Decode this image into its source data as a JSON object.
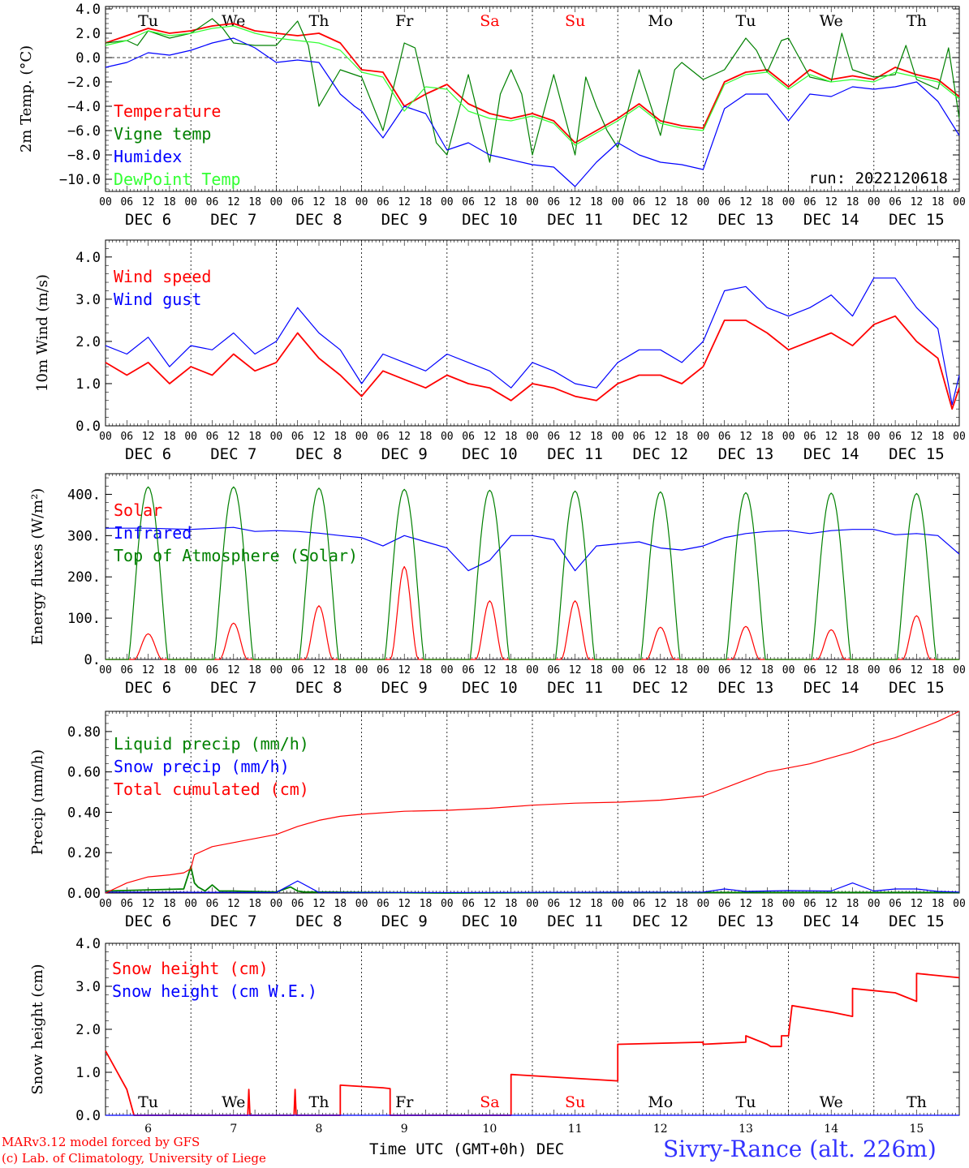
{
  "credits": {
    "line1": "MARv3.12 model forced by GFS",
    "line2": "(c) Lab. of Climatology, University of Liege"
  },
  "station": "Sivry-Rance (alt. 226m)",
  "xaxis_title": "Time UTC (GMT+0h) DEC",
  "colors": {
    "red": "#ff0000",
    "blue": "#0000ff",
    "green": "#008000",
    "lightgreen": "#33ff33",
    "weekend": "#ff0000"
  },
  "days": [
    {
      "dow": "Tu",
      "date": "DEC  6",
      "num": "6",
      "weekend": false
    },
    {
      "dow": "We",
      "date": "DEC  7",
      "num": "7",
      "weekend": false
    },
    {
      "dow": "Th",
      "date": "DEC  8",
      "num": "8",
      "weekend": false
    },
    {
      "dow": "Fr",
      "date": "DEC  9",
      "num": "9",
      "weekend": false
    },
    {
      "dow": "Sa",
      "date": "DEC 10",
      "num": "10",
      "weekend": true
    },
    {
      "dow": "Su",
      "date": "DEC 11",
      "num": "11",
      "weekend": true
    },
    {
      "dow": "Mo",
      "date": "DEC 12",
      "num": "12",
      "weekend": false
    },
    {
      "dow": "Tu",
      "date": "DEC 13",
      "num": "13",
      "weekend": false
    },
    {
      "dow": "We",
      "date": "DEC 14",
      "num": "14",
      "weekend": false
    },
    {
      "dow": "Th",
      "date": "DEC 15",
      "num": "15",
      "weekend": false
    }
  ],
  "hour_ticks": [
    "00",
    "06",
    "12",
    "18"
  ],
  "hour_end": "00",
  "chart_data": [
    {
      "type": "line",
      "ylabel": "2m Temp. (°C)",
      "ylim": [
        -11,
        4.2
      ],
      "yticks": [
        4,
        2,
        0,
        -2,
        -4,
        -6,
        -8,
        -10
      ],
      "ytick_labels": [
        "4.0",
        "2.0",
        "0.0",
        "−2.0",
        "−4.0",
        "−6.0",
        "−8.0",
        "−10.0"
      ],
      "zero_line": true,
      "show_dow": true,
      "annotation": "run: 2022120618",
      "series": [
        {
          "name": "Temperature",
          "color": "#ff0000",
          "x": [
            0,
            6,
            12,
            18,
            24,
            30,
            36,
            42,
            48,
            54,
            60,
            66,
            72,
            78,
            84,
            90,
            96,
            102,
            108,
            114,
            120,
            126,
            132,
            138,
            144,
            150,
            156,
            162,
            168,
            174,
            180,
            186,
            192,
            198,
            204,
            210,
            216,
            222,
            228,
            234,
            240
          ],
          "y": [
            1.2,
            1.8,
            2.4,
            2.0,
            2.2,
            2.6,
            2.8,
            2.2,
            2.0,
            1.8,
            2.0,
            1.2,
            -1.0,
            -1.2,
            -4.0,
            -3.0,
            -2.2,
            -3.8,
            -4.6,
            -5.0,
            -4.6,
            -5.2,
            -7.0,
            -6.0,
            -5.0,
            -3.8,
            -5.2,
            -5.6,
            -5.8,
            -2.0,
            -1.2,
            -1.0,
            -2.4,
            -1.0,
            -1.8,
            -1.5,
            -1.8,
            -0.8,
            -1.4,
            -1.8,
            -3.2
          ]
        },
        {
          "name": "Vigne temp",
          "color": "#008000",
          "x": [
            0,
            6,
            9,
            12,
            18,
            24,
            30,
            33,
            36,
            42,
            48,
            54,
            57,
            60,
            66,
            72,
            78,
            84,
            87,
            90,
            93,
            96,
            102,
            108,
            111,
            114,
            117,
            120,
            126,
            132,
            135,
            138,
            141,
            144,
            150,
            156,
            160,
            162,
            168,
            174,
            180,
            183,
            186,
            190,
            192,
            198,
            204,
            207,
            210,
            216,
            222,
            225,
            228,
            234,
            237,
            240
          ],
          "y": [
            1.2,
            1.4,
            1.0,
            2.2,
            1.6,
            2.0,
            3.2,
            2.4,
            1.2,
            1.0,
            1.0,
            3.0,
            1.0,
            -4.0,
            -1.0,
            -1.6,
            -6.0,
            1.2,
            0.8,
            -3.0,
            -7.0,
            -8.0,
            -1.4,
            -8.6,
            -3.0,
            -1.0,
            -3.0,
            -8.0,
            -1.4,
            -8.0,
            -1.6,
            -4.0,
            -6.0,
            -7.4,
            -1.0,
            -6.4,
            -1.0,
            -0.4,
            -1.8,
            -1.0,
            1.6,
            0.6,
            -1.2,
            1.4,
            1.6,
            -1.6,
            -2.0,
            2.0,
            -1.0,
            -1.6,
            -1.4,
            1.0,
            -1.8,
            -2.6,
            0.8,
            -5.0
          ]
        },
        {
          "name": "Humidex",
          "color": "#0000ff",
          "x": [
            0,
            6,
            12,
            18,
            24,
            30,
            36,
            42,
            48,
            54,
            60,
            66,
            70,
            72,
            78,
            84,
            90,
            96,
            102,
            108,
            114,
            120,
            126,
            132,
            138,
            144,
            150,
            156,
            162,
            168,
            174,
            180,
            186,
            192,
            198,
            204,
            210,
            216,
            222,
            228,
            234,
            240
          ],
          "y": [
            -0.8,
            -0.4,
            0.4,
            0.2,
            0.6,
            1.2,
            1.6,
            0.8,
            -0.4,
            -0.2,
            -0.4,
            -3.0,
            -4.0,
            -4.4,
            -6.6,
            -4.0,
            -4.6,
            -7.6,
            -7.0,
            -8.0,
            -8.4,
            -8.8,
            -9.0,
            -10.6,
            -8.6,
            -7.0,
            -8.0,
            -8.6,
            -8.8,
            -9.2,
            -4.2,
            -3.0,
            -3.0,
            -5.2,
            -3.0,
            -3.2,
            -2.4,
            -2.6,
            -2.4,
            -2.0,
            -3.6,
            -6.4
          ]
        },
        {
          "name": "DewPoint Temp",
          "color": "#33ff33",
          "x": [
            0,
            6,
            12,
            18,
            24,
            30,
            36,
            42,
            48,
            54,
            60,
            66,
            72,
            78,
            84,
            90,
            96,
            102,
            108,
            114,
            120,
            126,
            132,
            138,
            144,
            150,
            156,
            162,
            168,
            174,
            180,
            186,
            192,
            198,
            204,
            210,
            216,
            222,
            228,
            234,
            240
          ],
          "y": [
            1.0,
            1.4,
            2.2,
            1.8,
            2.0,
            2.4,
            2.6,
            2.0,
            1.6,
            1.4,
            1.2,
            0.6,
            -1.2,
            -1.6,
            -4.4,
            -2.4,
            -2.6,
            -4.4,
            -5.0,
            -5.2,
            -4.8,
            -5.4,
            -7.2,
            -6.2,
            -5.2,
            -4.0,
            -5.4,
            -5.8,
            -6.0,
            -2.2,
            -1.4,
            -1.2,
            -2.6,
            -1.4,
            -2.0,
            -1.8,
            -2.0,
            -1.2,
            -1.6,
            -2.0,
            -3.4
          ]
        }
      ]
    },
    {
      "type": "line",
      "ylabel": "10m Wind (m/s)",
      "ylim": [
        0,
        4.4
      ],
      "yticks": [
        0,
        1,
        2,
        3,
        4
      ],
      "ytick_labels": [
        "0.0",
        "1.0",
        "2.0",
        "3.0",
        "4.0"
      ],
      "series": [
        {
          "name": "Wind speed",
          "color": "#ff0000",
          "x": [
            0,
            6,
            12,
            18,
            24,
            30,
            36,
            42,
            48,
            54,
            60,
            66,
            72,
            78,
            84,
            90,
            96,
            102,
            108,
            114,
            120,
            126,
            132,
            138,
            144,
            150,
            156,
            162,
            168,
            174,
            180,
            186,
            192,
            198,
            204,
            210,
            216,
            222,
            228,
            234,
            238,
            240
          ],
          "y": [
            1.5,
            1.2,
            1.5,
            1.0,
            1.4,
            1.2,
            1.7,
            1.3,
            1.5,
            2.2,
            1.6,
            1.2,
            0.7,
            1.3,
            1.1,
            0.9,
            1.2,
            1.0,
            0.9,
            0.6,
            1.0,
            0.9,
            0.7,
            0.6,
            1.0,
            1.2,
            1.2,
            1.0,
            1.4,
            2.5,
            2.5,
            2.2,
            1.8,
            2.0,
            2.2,
            1.9,
            2.4,
            2.6,
            2.0,
            1.6,
            0.4,
            0.9
          ]
        },
        {
          "name": "Wind gust",
          "color": "#0000ff",
          "x": [
            0,
            6,
            12,
            18,
            24,
            30,
            36,
            42,
            48,
            54,
            60,
            66,
            72,
            78,
            84,
            90,
            96,
            102,
            108,
            114,
            120,
            126,
            132,
            138,
            144,
            150,
            156,
            162,
            168,
            174,
            180,
            186,
            192,
            198,
            204,
            210,
            216,
            222,
            228,
            234,
            238,
            240
          ],
          "y": [
            1.9,
            1.7,
            2.1,
            1.4,
            1.9,
            1.8,
            2.2,
            1.7,
            2.0,
            2.8,
            2.2,
            1.8,
            1.0,
            1.7,
            1.5,
            1.3,
            1.7,
            1.5,
            1.3,
            0.9,
            1.5,
            1.3,
            1.0,
            0.9,
            1.5,
            1.8,
            1.8,
            1.5,
            2.0,
            3.2,
            3.3,
            2.8,
            2.6,
            2.8,
            3.1,
            2.6,
            3.5,
            3.5,
            2.8,
            2.3,
            0.5,
            1.2
          ]
        }
      ]
    },
    {
      "type": "line",
      "ylabel": "Energy fluxes (W/m²)",
      "ylim": [
        0,
        450
      ],
      "yticks": [
        0,
        100,
        200,
        300,
        400
      ],
      "ytick_labels": [
        "0.",
        "100.",
        "200.",
        "300.",
        "400."
      ],
      "solar_peaks": [
        62,
        88,
        130,
        225,
        142,
        142,
        78,
        80,
        72,
        106
      ],
      "toa_peaks": [
        418,
        418,
        415,
        412,
        410,
        408,
        406,
        404,
        403,
        402
      ],
      "series": [
        {
          "name": "Solar",
          "color": "#ff0000"
        },
        {
          "name": "Infrared",
          "color": "#0000ff",
          "x": [
            0,
            12,
            24,
            36,
            42,
            48,
            54,
            60,
            66,
            72,
            78,
            84,
            90,
            96,
            102,
            108,
            114,
            120,
            126,
            132,
            138,
            144,
            150,
            156,
            162,
            168,
            174,
            180,
            186,
            192,
            198,
            204,
            210,
            216,
            222,
            228,
            234,
            240
          ],
          "y": [
            318,
            318,
            315,
            320,
            310,
            312,
            310,
            306,
            300,
            295,
            275,
            300,
            285,
            270,
            215,
            240,
            300,
            300,
            290,
            215,
            275,
            280,
            285,
            270,
            265,
            275,
            295,
            305,
            310,
            312,
            305,
            312,
            315,
            315,
            302,
            305,
            300,
            255
          ]
        },
        {
          "name": "Top of Atmosphere (Solar)",
          "color": "#008000"
        }
      ]
    },
    {
      "type": "line",
      "ylabel": "Precip (mm/h)",
      "ylim": [
        0,
        0.9
      ],
      "yticks": [
        0,
        0.2,
        0.4,
        0.6,
        0.8
      ],
      "ytick_labels": [
        "0.00",
        "0.20",
        "0.40",
        "0.60",
        "0.80"
      ],
      "series": [
        {
          "name": "Liquid precip (mm/h)",
          "color": "#008000",
          "x": [
            0,
            22,
            24,
            25,
            26,
            28,
            30,
            32,
            36,
            48,
            52,
            54,
            56,
            60,
            96,
            144,
            240
          ],
          "y": [
            0.01,
            0.02,
            0.13,
            0.05,
            0.03,
            0.01,
            0.04,
            0.01,
            0.01,
            0.005,
            0.03,
            0.01,
            0.005,
            0.005,
            0,
            0.003,
            0.003
          ]
        },
        {
          "name": "Snow precip (mm/h)",
          "color": "#0000ff",
          "x": [
            0,
            48,
            54,
            60,
            96,
            144,
            168,
            174,
            180,
            192,
            204,
            210,
            216,
            222,
            228,
            234,
            240
          ],
          "y": [
            0.005,
            0.003,
            0.06,
            0.003,
            0.003,
            0.004,
            0.005,
            0.02,
            0.008,
            0.012,
            0.01,
            0.05,
            0.01,
            0.02,
            0.02,
            0.008,
            0.005
          ]
        },
        {
          "name": "Total cumulated (cm)",
          "color": "#ff0000",
          "x": [
            0,
            6,
            12,
            18,
            22,
            24,
            25,
            30,
            36,
            42,
            48,
            54,
            60,
            66,
            72,
            84,
            96,
            108,
            120,
            132,
            144,
            156,
            168,
            174,
            180,
            186,
            192,
            198,
            204,
            210,
            216,
            222,
            228,
            234,
            240
          ],
          "y": [
            0,
            0.05,
            0.08,
            0.09,
            0.1,
            0.12,
            0.19,
            0.23,
            0.25,
            0.27,
            0.29,
            0.33,
            0.36,
            0.38,
            0.39,
            0.405,
            0.41,
            0.42,
            0.435,
            0.445,
            0.45,
            0.46,
            0.48,
            0.52,
            0.56,
            0.6,
            0.62,
            0.64,
            0.67,
            0.7,
            0.74,
            0.77,
            0.81,
            0.85,
            0.9
          ]
        }
      ]
    },
    {
      "type": "line",
      "ylabel": "Snow height (cm)",
      "ylim": [
        0,
        4
      ],
      "yticks": [
        0,
        1,
        2,
        3,
        4
      ],
      "ytick_labels": [
        "0.0",
        "1.0",
        "2.0",
        "3.0",
        "4.0"
      ],
      "show_dow_bottom": true,
      "series": [
        {
          "name": "Snow height (cm)",
          "color": "#ff0000",
          "x": [
            0,
            6,
            8,
            8.01,
            40,
            40.3,
            40.6,
            53,
            53.3,
            53.6,
            66,
            66.01,
            78,
            80,
            80.01,
            114,
            114.01,
            144,
            144.01,
            168,
            168.01,
            180,
            180.01,
            186,
            187,
            190,
            190.01,
            192,
            193,
            193.01,
            204,
            210,
            210.01,
            216,
            222,
            228,
            228.01,
            240
          ],
          "y": [
            1.5,
            0.6,
            0,
            0,
            0,
            0.6,
            0,
            0,
            0.6,
            0,
            0,
            0.7,
            0.64,
            0.62,
            0,
            0,
            0.95,
            0.8,
            1.65,
            1.7,
            1.65,
            1.7,
            1.85,
            1.65,
            1.6,
            1.6,
            1.85,
            1.85,
            2.55,
            2.55,
            2.4,
            2.3,
            2.95,
            2.9,
            2.85,
            2.65,
            3.3,
            3.2
          ]
        },
        {
          "name": "Snow height (cm W.E.)",
          "color": "#0000ff",
          "x": [
            0,
            240
          ],
          "y": [
            0,
            0
          ]
        }
      ]
    }
  ]
}
